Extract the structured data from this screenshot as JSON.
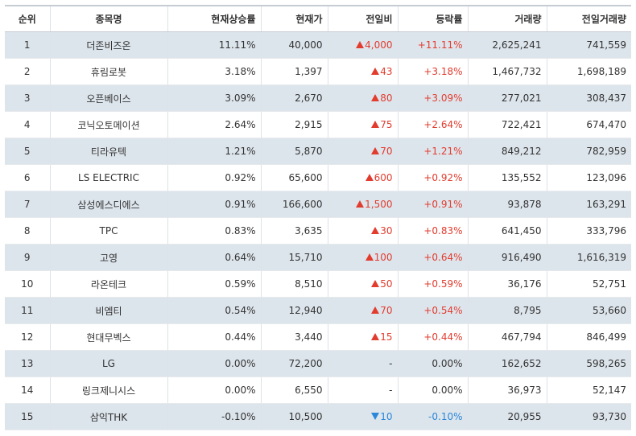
{
  "colors": {
    "up": "#e23c2f",
    "down": "#2b87d9",
    "stripe": "#dde5ec"
  },
  "headers": [
    "순위",
    "종목명",
    "현재상승률",
    "현재가",
    "전일비",
    "등락률",
    "거래량",
    "전일거래량"
  ],
  "rows": [
    {
      "rank": "1",
      "name": "더존비즈온",
      "rise_rate": "11.11%",
      "price": "40,000",
      "dir": "up",
      "change": "4,000",
      "pct": "+11.11%",
      "volume": "2,625,241",
      "prev_volume": "741,559"
    },
    {
      "rank": "2",
      "name": "휴림로봇",
      "rise_rate": "3.18%",
      "price": "1,397",
      "dir": "up",
      "change": "43",
      "pct": "+3.18%",
      "volume": "1,467,732",
      "prev_volume": "1,698,189"
    },
    {
      "rank": "3",
      "name": "오픈베이스",
      "rise_rate": "3.09%",
      "price": "2,670",
      "dir": "up",
      "change": "80",
      "pct": "+3.09%",
      "volume": "277,021",
      "prev_volume": "308,437"
    },
    {
      "rank": "4",
      "name": "코닉오토메이션",
      "rise_rate": "2.64%",
      "price": "2,915",
      "dir": "up",
      "change": "75",
      "pct": "+2.64%",
      "volume": "722,421",
      "prev_volume": "674,470"
    },
    {
      "rank": "5",
      "name": "티라유텍",
      "rise_rate": "1.21%",
      "price": "5,870",
      "dir": "up",
      "change": "70",
      "pct": "+1.21%",
      "volume": "849,212",
      "prev_volume": "782,959"
    },
    {
      "rank": "6",
      "name": "LS ELECTRIC",
      "rise_rate": "0.92%",
      "price": "65,600",
      "dir": "up",
      "change": "600",
      "pct": "+0.92%",
      "volume": "135,552",
      "prev_volume": "123,096"
    },
    {
      "rank": "7",
      "name": "삼성에스디에스",
      "rise_rate": "0.91%",
      "price": "166,600",
      "dir": "up",
      "change": "1,500",
      "pct": "+0.91%",
      "volume": "93,878",
      "prev_volume": "163,291"
    },
    {
      "rank": "8",
      "name": "TPC",
      "rise_rate": "0.83%",
      "price": "3,635",
      "dir": "up",
      "change": "30",
      "pct": "+0.83%",
      "volume": "641,450",
      "prev_volume": "333,796"
    },
    {
      "rank": "9",
      "name": "고영",
      "rise_rate": "0.64%",
      "price": "15,710",
      "dir": "up",
      "change": "100",
      "pct": "+0.64%",
      "volume": "916,490",
      "prev_volume": "1,616,319"
    },
    {
      "rank": "10",
      "name": "라온테크",
      "rise_rate": "0.59%",
      "price": "8,510",
      "dir": "up",
      "change": "50",
      "pct": "+0.59%",
      "volume": "36,176",
      "prev_volume": "52,751"
    },
    {
      "rank": "11",
      "name": "비엠티",
      "rise_rate": "0.54%",
      "price": "12,940",
      "dir": "up",
      "change": "70",
      "pct": "+0.54%",
      "volume": "8,795",
      "prev_volume": "53,660"
    },
    {
      "rank": "12",
      "name": "현대무벡스",
      "rise_rate": "0.44%",
      "price": "3,440",
      "dir": "up",
      "change": "15",
      "pct": "+0.44%",
      "volume": "467,794",
      "prev_volume": "846,499"
    },
    {
      "rank": "13",
      "name": "LG",
      "rise_rate": "0.00%",
      "price": "72,200",
      "dir": "flat",
      "change": "-",
      "pct": "0.00%",
      "volume": "162,652",
      "prev_volume": "598,265"
    },
    {
      "rank": "14",
      "name": "링크제니시스",
      "rise_rate": "0.00%",
      "price": "6,550",
      "dir": "flat",
      "change": "-",
      "pct": "0.00%",
      "volume": "36,973",
      "prev_volume": "52,147"
    },
    {
      "rank": "15",
      "name": "삼익THK",
      "rise_rate": "-0.10%",
      "price": "10,500",
      "dir": "down",
      "change": "10",
      "pct": "-0.10%",
      "volume": "20,955",
      "prev_volume": "93,730"
    }
  ]
}
